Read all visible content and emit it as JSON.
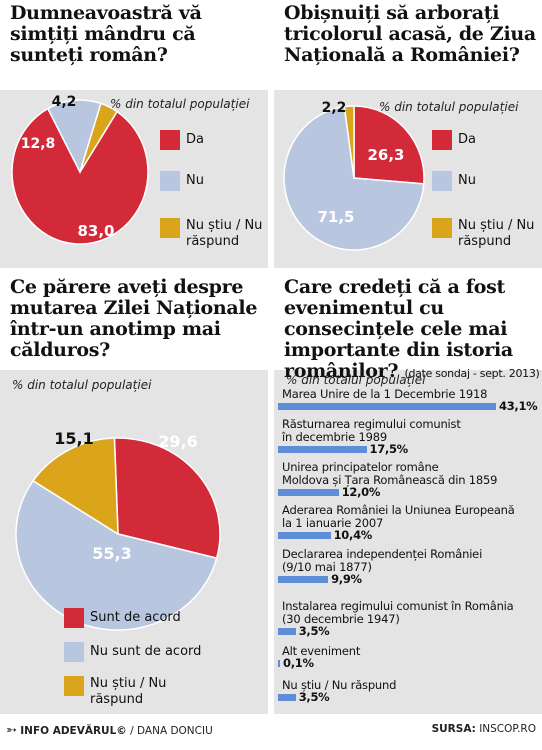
{
  "colors": {
    "red": "#d32a39",
    "blue": "#b9c6e0",
    "yellow": "#dba51b",
    "bar": "#5f8ed8"
  },
  "chart_data": [
    {
      "type": "pie",
      "title": "Dumneavoastră vă simțiți mândru că sunteți român?",
      "subtitle": "% din totalul populației",
      "categories": [
        "Da",
        "Nu",
        "Nu știu / Nu răspund"
      ],
      "values": [
        83.0,
        12.8,
        4.2
      ],
      "labels": [
        "83,0",
        "12,8",
        "4,2"
      ]
    },
    {
      "type": "pie",
      "title": "Obișnuiți să arborați tricolorul acasă, de Ziua Națională a României?",
      "subtitle": "% din totalul populației",
      "categories": [
        "Da",
        "Nu",
        "Nu știu / Nu răspund"
      ],
      "values": [
        26.3,
        71.5,
        2.2
      ],
      "labels": [
        "26,3",
        "71,5",
        "2,2"
      ]
    },
    {
      "type": "pie",
      "title": "Ce părere aveți despre mutarea Zilei Naționale într-un anotimp mai călduros?",
      "subtitle": "% din totalul populației",
      "categories": [
        "Sunt de acord",
        "Nu sunt de acord",
        "Nu știu / Nu răspund"
      ],
      "values": [
        29.6,
        55.3,
        15.1
      ],
      "labels": [
        "29,6",
        "55,3",
        "15,1"
      ]
    },
    {
      "type": "bar",
      "title": "Care credeți că a fost evenimentul cu consecințele cele mai importante din istoria românilor?",
      "note": "(date sondaj - sept. 2013)",
      "subtitle": "% din totalul populației",
      "categories": [
        [
          "Marea Unire de la 1 Decembrie 1918"
        ],
        [
          "Răsturnarea regimului comunist",
          "în decembrie 1989"
        ],
        [
          "Unirea principatelor române",
          "Moldova și Țara Românească din 1859"
        ],
        [
          "Aderarea României la Uniunea Europeană",
          "la 1 ianuarie 2007"
        ],
        [
          "Declararea independenței României",
          "(9/10 mai 1877)"
        ],
        [
          "Instalarea regimului comunist în România",
          "(30 decembrie 1947)"
        ],
        [
          "Alt eveniment"
        ],
        [
          "Nu știu / Nu răspund"
        ]
      ],
      "values": [
        43.1,
        17.5,
        12.0,
        10.4,
        9.9,
        3.5,
        0.1,
        3.5
      ],
      "labels": [
        "43,1%",
        "17,5%",
        "12,0%",
        "10,4%",
        "9,9%",
        "3,5%",
        "0,1%",
        "3,5%"
      ]
    }
  ],
  "footer": {
    "brand": "INFO ADEVĂRUL©",
    "author": "/ DANA DONCIU",
    "source_label": "SURSA:",
    "source": "INSCOP.RO"
  }
}
